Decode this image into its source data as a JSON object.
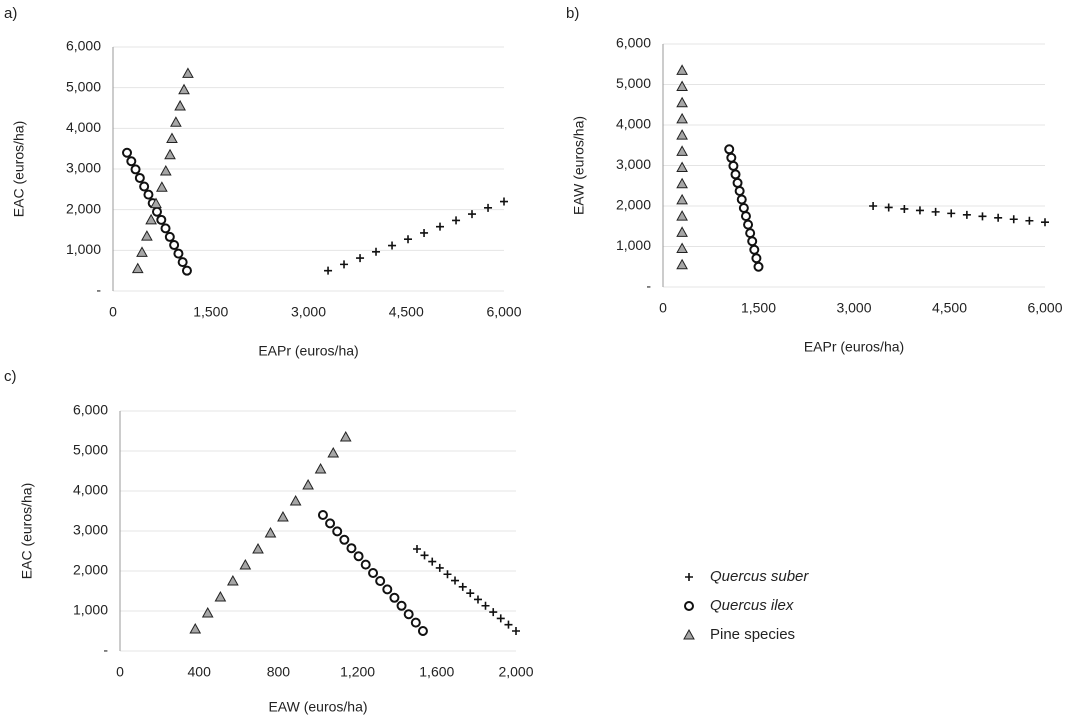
{
  "chart_data": [
    {
      "type": "scatter",
      "label": "a)",
      "xlabel": "EAPr (euros/ha)",
      "ylabel": "EAC (euros/ha)",
      "xlim": [
        0,
        6000
      ],
      "xticks": [
        0,
        {
          "value": 1500,
          "label": "1,500"
        },
        {
          "value": 3000,
          "label": "3,000"
        },
        {
          "value": 4500,
          "label": "4,500"
        },
        {
          "value": 6000,
          "label": "6,000"
        }
      ],
      "ylim": [
        0,
        6000
      ],
      "yticks": [
        {
          "value": 0,
          "label": "-"
        },
        {
          "value": 1000,
          "label": "1,000"
        },
        {
          "value": 2000,
          "label": "2,000"
        },
        {
          "value": 3000,
          "label": "3,000"
        },
        {
          "value": 4000,
          "label": "4,000"
        },
        {
          "value": 5000,
          "label": "5,000"
        },
        {
          "value": 6000,
          "label": "6,000"
        }
      ],
      "grid": true,
      "series": [
        {
          "name": "Quercus suber",
          "marker": "plus",
          "color": "#111111",
          "x": [
            3300,
            3545,
            3791,
            4036,
            4282,
            4527,
            4773,
            5018,
            5264,
            5509,
            5755,
            6000
          ],
          "values": [
            500,
            655,
            809,
            964,
            1118,
            1273,
            1427,
            1582,
            1736,
            1891,
            2045,
            2200
          ]
        },
        {
          "name": "Quercus ilex",
          "marker": "circle",
          "color": "#111111",
          "x": [
            215,
            281,
            346,
            412,
            478,
            544,
            609,
            675,
            741,
            806,
            872,
            938,
            1004,
            1069,
            1135
          ],
          "values": [
            3400,
            3190,
            2990,
            2780,
            2570,
            2370,
            2160,
            1950,
            1750,
            1540,
            1330,
            1130,
            920,
            710,
            500
          ]
        },
        {
          "name": "Pine species",
          "marker": "triangle",
          "color": "#a6a6a6",
          "x": [
            380,
            445,
            520,
            585,
            660,
            750,
            810,
            875,
            905,
            965,
            1030,
            1090,
            1150
          ],
          "values": [
            550,
            950,
            1350,
            1750,
            2150,
            2550,
            2950,
            3350,
            3750,
            4150,
            4550,
            4950,
            5350
          ]
        }
      ]
    },
    {
      "type": "scatter",
      "label": "b)",
      "xlabel": "EAPr (euros/ha)",
      "ylabel": "EAW (euros/ha)",
      "xlim": [
        0,
        6000
      ],
      "xticks": [
        0,
        {
          "value": 1500,
          "label": "1,500"
        },
        {
          "value": 3000,
          "label": "3,000"
        },
        {
          "value": 4500,
          "label": "4,500"
        },
        {
          "value": 6000,
          "label": "6,000"
        }
      ],
      "ylim": [
        0,
        6000
      ],
      "yticks": [
        {
          "value": 0,
          "label": "-"
        },
        {
          "value": 1000,
          "label": "1,000"
        },
        {
          "value": 2000,
          "label": "2,000"
        },
        {
          "value": 3000,
          "label": "3,000"
        },
        {
          "value": 4000,
          "label": "4,000"
        },
        {
          "value": 5000,
          "label": "5,000"
        },
        {
          "value": 6000,
          "label": "6,000"
        }
      ],
      "grid": true,
      "series": [
        {
          "name": "Quercus suber",
          "marker": "plus",
          "color": "#111111",
          "x": [
            3300,
            3545,
            3791,
            4036,
            4282,
            4527,
            4773,
            5018,
            5264,
            5509,
            5755,
            6000
          ],
          "values": [
            2000,
            1964,
            1927,
            1891,
            1855,
            1818,
            1782,
            1745,
            1709,
            1673,
            1636,
            1600
          ]
        },
        {
          "name": "Quercus ilex",
          "marker": "circle",
          "color": "#111111",
          "x": [
            1040,
            1073,
            1106,
            1139,
            1171,
            1204,
            1237,
            1270,
            1303,
            1336,
            1369,
            1401,
            1434,
            1467,
            1500
          ],
          "values": [
            3400,
            3190,
            2990,
            2780,
            2570,
            2370,
            2160,
            1950,
            1750,
            1540,
            1330,
            1130,
            920,
            710,
            500
          ]
        },
        {
          "name": "Pine species",
          "marker": "triangle",
          "color": "#a6a6a6",
          "x": [
            300,
            300,
            300,
            300,
            300,
            300,
            300,
            300,
            300,
            300,
            300,
            300,
            300
          ],
          "values": [
            550,
            950,
            1350,
            1750,
            2150,
            2550,
            2950,
            3350,
            3750,
            4150,
            4550,
            4950,
            5350
          ]
        }
      ]
    },
    {
      "type": "scatter",
      "label": "c)",
      "xlabel": "EAW (euros/ha)",
      "ylabel": "EAC (euros/ha)",
      "xlim": [
        0,
        2000
      ],
      "xticks": [
        0,
        400,
        800,
        {
          "value": 1200,
          "label": "1,200"
        },
        {
          "value": 1600,
          "label": "1,600"
        },
        {
          "value": 2000,
          "label": "2,000"
        }
      ],
      "ylim": [
        0,
        6000
      ],
      "yticks": [
        {
          "value": 0,
          "label": "-"
        },
        {
          "value": 1000,
          "label": "1,000"
        },
        {
          "value": 2000,
          "label": "2,000"
        },
        {
          "value": 3000,
          "label": "3,000"
        },
        {
          "value": 4000,
          "label": "4,000"
        },
        {
          "value": 5000,
          "label": "5,000"
        },
        {
          "value": 6000,
          "label": "6,000"
        }
      ],
      "grid": true,
      "series": [
        {
          "name": "Quercus suber",
          "marker": "plus",
          "color": "#111111",
          "x": [
            1500,
            1538,
            1577,
            1615,
            1654,
            1692,
            1731,
            1769,
            1808,
            1846,
            1885,
            1923,
            1962,
            2000
          ],
          "values": [
            2550,
            2392,
            2235,
            2077,
            1919,
            1762,
            1604,
            1446,
            1288,
            1131,
            973,
            815,
            658,
            500
          ]
        },
        {
          "name": "Quercus ilex",
          "marker": "circle",
          "color": "#111111",
          "x": [
            1025,
            1061,
            1097,
            1133,
            1169,
            1205,
            1241,
            1278,
            1314,
            1350,
            1386,
            1422,
            1458,
            1494,
            1530
          ],
          "values": [
            3400,
            3190,
            2990,
            2780,
            2570,
            2370,
            2160,
            1950,
            1750,
            1540,
            1330,
            1130,
            920,
            710,
            500
          ]
        },
        {
          "name": "Pine species",
          "marker": "triangle",
          "color": "#a6a6a6",
          "x": [
            380,
            443,
            507,
            570,
            633,
            697,
            760,
            823,
            887,
            950,
            1013,
            1077,
            1140
          ],
          "values": [
            550,
            950,
            1350,
            1750,
            2150,
            2550,
            2950,
            3350,
            3750,
            4150,
            4550,
            4950,
            5350
          ]
        }
      ]
    }
  ]
}
